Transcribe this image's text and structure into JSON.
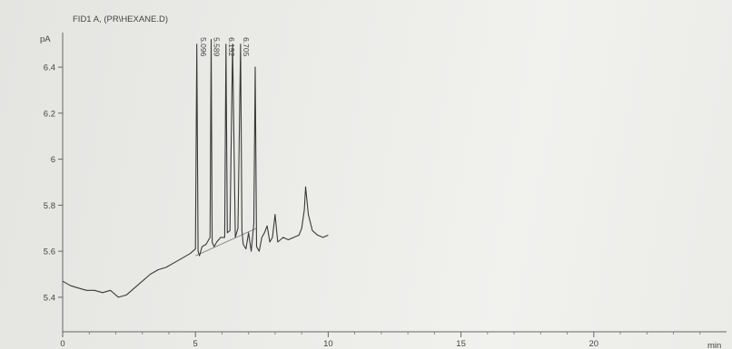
{
  "chart_data": {
    "type": "line",
    "title": "FID1 A, (PR\\HEXANE.D)",
    "ylabel": "pA",
    "xlabel": "min",
    "xlim": [
      0,
      25
    ],
    "ylim": [
      5.25,
      6.55
    ],
    "grid": false,
    "x_ticks": [
      0,
      5,
      10,
      15,
      20
    ],
    "y_ticks": [
      5.4,
      5.6,
      5.8,
      6,
      6.2,
      6.4
    ],
    "y_tick_labels": [
      "5.4",
      "5.6",
      "5.8",
      "6",
      "6.2",
      "6.4"
    ],
    "peak_labels": [
      {
        "label": "5.096",
        "x": 5.096
      },
      {
        "label": "5.589",
        "x": 5.589
      },
      {
        "label": "6.152",
        "x": 6.152
      },
      {
        "label": "6.705",
        "x": 6.705
      }
    ],
    "series": [
      {
        "x": [
          0,
          0.3,
          0.6,
          0.9,
          1.2,
          1.5,
          1.8,
          2.1,
          2.4,
          2.7,
          3.0,
          3.3,
          3.6,
          3.9,
          4.2,
          4.5,
          4.8,
          5.0,
          5.05,
          5.1,
          5.15,
          5.25,
          5.4,
          5.55,
          5.59,
          5.63,
          5.7,
          5.8,
          5.95,
          6.1,
          6.15,
          6.2,
          6.3,
          6.4,
          6.5,
          6.6,
          6.7,
          6.75,
          6.8,
          6.9,
          7.0,
          7.1,
          7.2,
          7.25,
          7.3,
          7.4,
          7.5,
          7.6,
          7.7,
          7.8,
          7.9,
          8.0,
          8.1,
          8.2,
          8.3,
          8.5,
          8.7,
          8.9,
          9.0,
          9.1,
          9.15,
          9.25,
          9.4,
          9.6,
          9.8,
          10.0
        ],
        "y": [
          5.47,
          5.45,
          5.44,
          5.43,
          5.43,
          5.42,
          5.43,
          5.4,
          5.41,
          5.44,
          5.47,
          5.5,
          5.52,
          5.53,
          5.55,
          5.57,
          5.59,
          5.61,
          6.5,
          5.6,
          5.58,
          5.62,
          5.63,
          5.66,
          6.52,
          5.64,
          5.62,
          5.64,
          5.66,
          5.66,
          6.5,
          5.68,
          5.69,
          6.5,
          5.66,
          5.7,
          6.5,
          5.69,
          5.63,
          5.61,
          5.68,
          5.6,
          5.72,
          6.4,
          5.62,
          5.6,
          5.66,
          5.68,
          5.71,
          5.64,
          5.66,
          5.76,
          5.64,
          5.65,
          5.66,
          5.65,
          5.66,
          5.67,
          5.7,
          5.78,
          5.88,
          5.76,
          5.69,
          5.67,
          5.66,
          5.67
        ]
      }
    ]
  }
}
